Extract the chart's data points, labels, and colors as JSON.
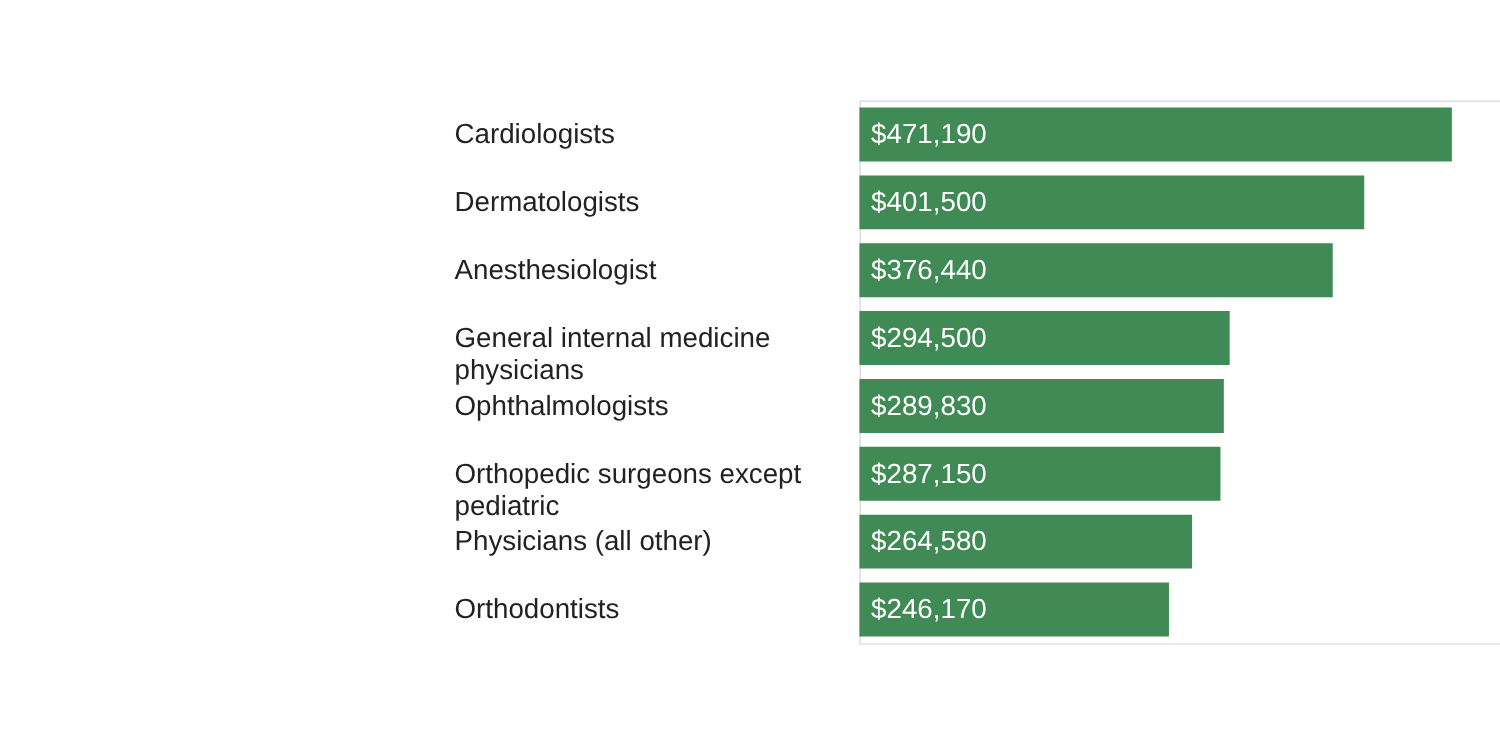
{
  "chart_data": {
    "type": "bar",
    "orientation": "horizontal",
    "color": "#3f8a55",
    "categories": [
      "Cardiologists",
      "Dermatologists",
      "Anesthesiologist",
      "General internal medicine physicians",
      "Ophthalmologists",
      "Orthopedic surgeons except pediatric",
      "Physicians (all other)",
      "Orthodontists"
    ],
    "values": [
      471190,
      401500,
      376440,
      294500,
      289830,
      287150,
      264580,
      246170
    ],
    "value_labels": [
      "$471,190",
      "$401,500",
      "$376,440",
      "$294,500",
      "$289,830",
      "$287,150",
      "$264,580",
      "$246,170"
    ]
  }
}
